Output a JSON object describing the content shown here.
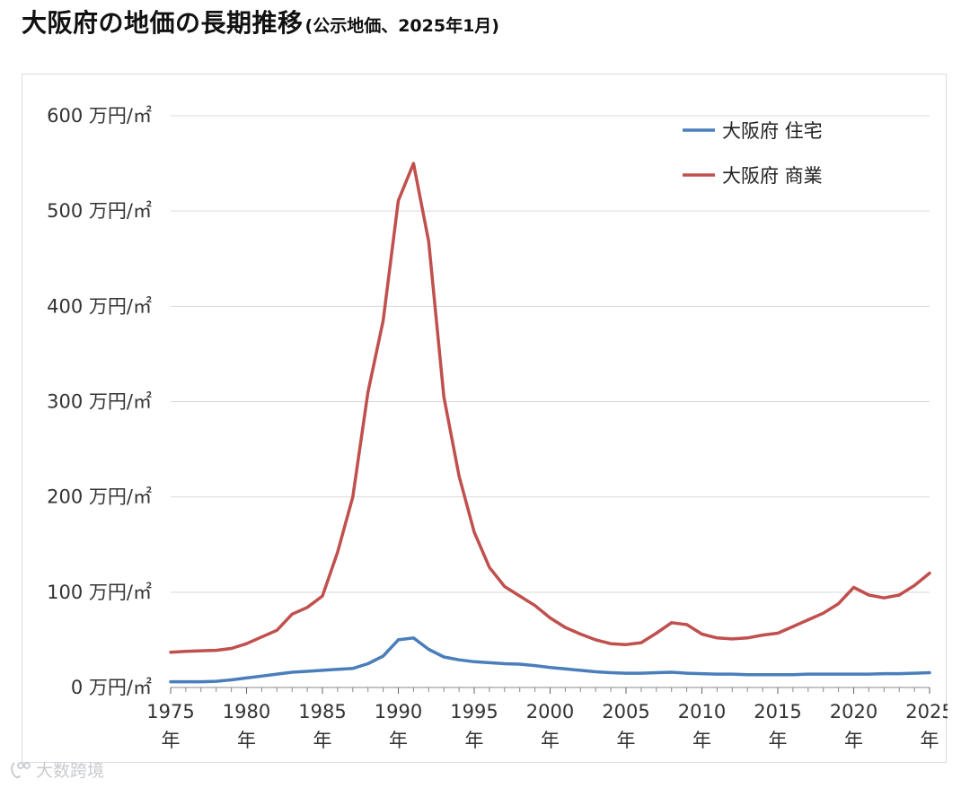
{
  "title": {
    "main": "大阪府の地価の長期推移",
    "sub": "(公示地価、2025年1月)"
  },
  "watermark": {
    "text": "大数跨境",
    "logo_icon": "bubble-logo-icon"
  },
  "chart_data": {
    "type": "line",
    "title": "大阪府の地価の長期推移",
    "subtitle": "(公示地価、2025年1月)",
    "y_tick_labels": [
      "0 万円/㎡",
      "100 万円/㎡",
      "200 万円/㎡",
      "300 万円/㎡",
      "400 万円/㎡",
      "500 万円/㎡",
      "600 万円/㎡"
    ],
    "y_ticks": [
      0,
      100,
      200,
      300,
      400,
      500,
      600
    ],
    "ylim": [
      0,
      600
    ],
    "xlim": [
      1975,
      2025
    ],
    "x_ticks": [
      1975,
      1980,
      1985,
      1990,
      1995,
      2000,
      2005,
      2010,
      2015,
      2020,
      2025
    ],
    "x_tick_labels": [
      "1975",
      "1980",
      "1985",
      "1990",
      "1995",
      "2000",
      "2005",
      "2010",
      "2015",
      "2020",
      "2025"
    ],
    "x_tick_unit": "年",
    "grid": true,
    "legend_position": "top-right",
    "x": [
      1975,
      1976,
      1977,
      1978,
      1979,
      1980,
      1981,
      1982,
      1983,
      1984,
      1985,
      1986,
      1987,
      1988,
      1989,
      1990,
      1991,
      1992,
      1993,
      1994,
      1995,
      1996,
      1997,
      1998,
      1999,
      2000,
      2001,
      2002,
      2003,
      2004,
      2005,
      2006,
      2007,
      2008,
      2009,
      2010,
      2011,
      2012,
      2013,
      2014,
      2015,
      2016,
      2017,
      2018,
      2019,
      2020,
      2021,
      2022,
      2023,
      2024,
      2025
    ],
    "series": [
      {
        "name": "大阪府 住宅",
        "color": "#4a7ebb",
        "values": [
          6,
          6,
          6,
          6.5,
          8,
          10,
          12,
          14,
          16,
          17,
          18,
          19,
          20,
          25,
          33,
          50,
          52,
          40,
          32,
          29,
          27,
          26,
          25,
          24.5,
          23,
          21,
          19.5,
          18,
          16.5,
          15.5,
          15,
          15,
          15.5,
          16,
          15,
          14.5,
          14,
          14,
          13.5,
          13.5,
          13.5,
          13.5,
          14,
          14,
          14,
          14,
          14,
          14.5,
          14.5,
          15,
          15.5
        ]
      },
      {
        "name": "大阪府 商業",
        "color": "#c0504d",
        "values": [
          37,
          38,
          38.5,
          39,
          41,
          46,
          53,
          60,
          77,
          84,
          96,
          142,
          200,
          310,
          385,
          511,
          550,
          468,
          305,
          222,
          163,
          126,
          106,
          96,
          86,
          73,
          63,
          56,
          50,
          46,
          45,
          47,
          57,
          68,
          66,
          56,
          52,
          51,
          52,
          55,
          57,
          64,
          71,
          78,
          88,
          105,
          97,
          94,
          97,
          107,
          120
        ]
      }
    ]
  }
}
